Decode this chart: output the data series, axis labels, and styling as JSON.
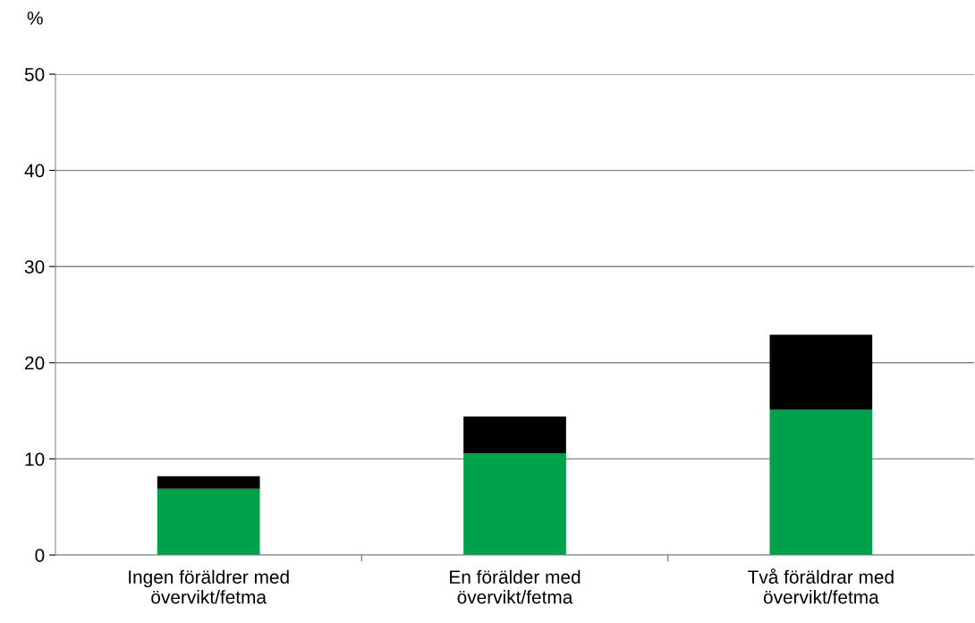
{
  "chart_data": {
    "type": "bar",
    "stacked": true,
    "ylabel": "%",
    "categories": [
      "Ingen föräldrer med\növervikt/fetma",
      "En förälder med\növervikt/fetma",
      "Två föräldrar med\növervikt/fetma"
    ],
    "series": [
      {
        "color": "#00a14b",
        "values": [
          6.9,
          10.6,
          15.1
        ]
      },
      {
        "color": "#000000",
        "values": [
          1.3,
          3.8,
          7.8
        ]
      }
    ],
    "ylim": [
      0,
      50
    ],
    "yticks": [
      0,
      10,
      20,
      30,
      40,
      50
    ],
    "grid": "y"
  }
}
